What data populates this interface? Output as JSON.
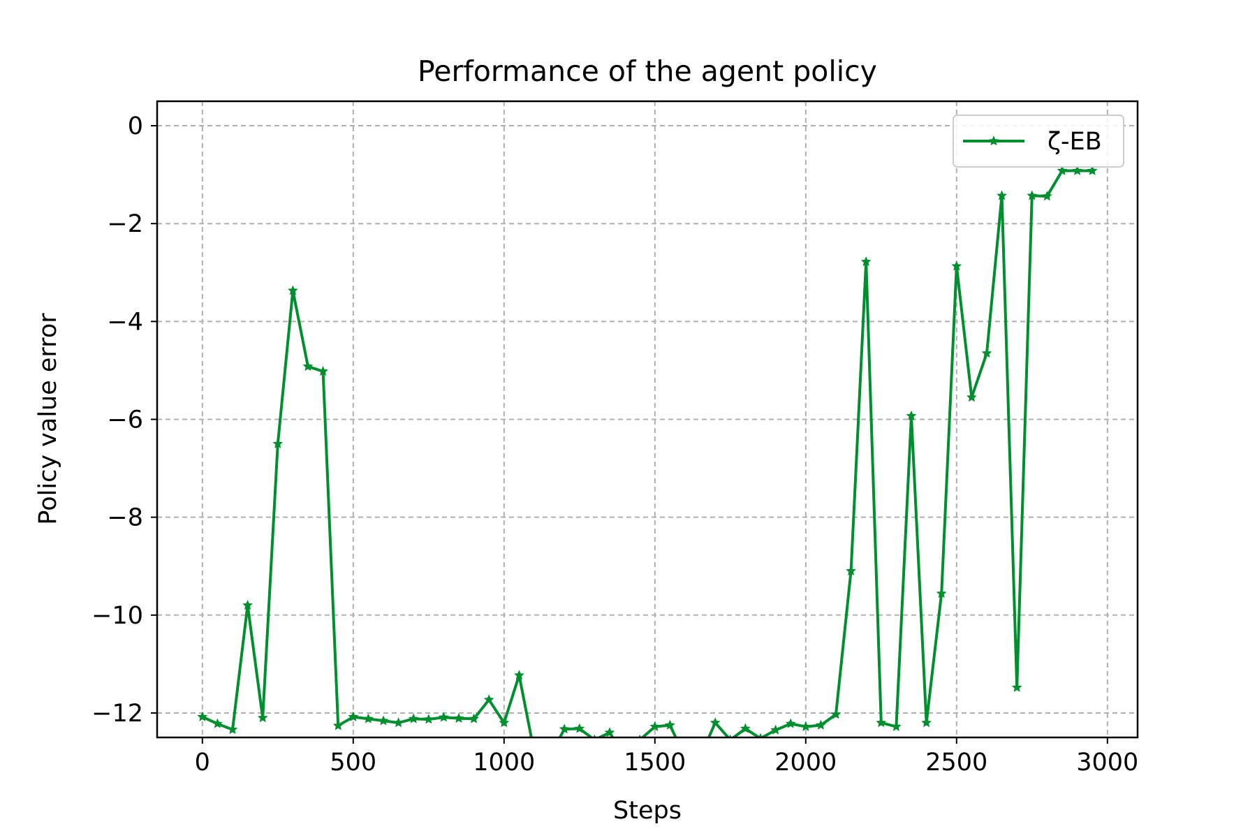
{
  "chart_data": {
    "type": "line",
    "title": "Performance of the agent policy",
    "xlabel": "Steps",
    "ylabel": "Policy value error",
    "xlim": [
      -150,
      3100
    ],
    "ylim": [
      -12.5,
      0.5
    ],
    "xticks": [
      0,
      500,
      1000,
      1500,
      2000,
      2500,
      3000
    ],
    "xtick_labels": [
      "0",
      "500",
      "1000",
      "1500",
      "2000",
      "2500",
      "3000"
    ],
    "yticks": [
      0,
      -2,
      -4,
      -6,
      -8,
      -10,
      -12
    ],
    "ytick_labels": [
      "0",
      "−2",
      "−4",
      "−6",
      "−8",
      "−10",
      "−12"
    ],
    "grid": true,
    "legend_position": "top-right",
    "series": [
      {
        "name": "ζ-EB",
        "color": "#008f2e",
        "marker": "star",
        "x": [
          0,
          50,
          100,
          150,
          200,
          250,
          300,
          350,
          400,
          450,
          500,
          550,
          600,
          650,
          700,
          750,
          800,
          850,
          900,
          950,
          1000,
          1050,
          1100,
          1150,
          1200,
          1250,
          1300,
          1350,
          1400,
          1450,
          1500,
          1550,
          1600,
          1650,
          1700,
          1750,
          1800,
          1850,
          1900,
          1950,
          2000,
          2050,
          2100,
          2150,
          2200,
          2250,
          2300,
          2350,
          2400,
          2450,
          2500,
          2550,
          2600,
          2650,
          2700,
          2750,
          2800,
          2850,
          2900,
          2950
        ],
        "y": [
          -12.08,
          -12.22,
          -12.34,
          -9.8,
          -12.1,
          -6.5,
          -3.37,
          -4.92,
          -5.02,
          -12.26,
          -12.08,
          -12.12,
          -12.16,
          -12.2,
          -12.12,
          -12.13,
          -12.09,
          -12.11,
          -12.12,
          -11.73,
          -12.2,
          -11.23,
          -12.8,
          -12.9,
          -12.33,
          -12.32,
          -12.55,
          -12.4,
          -12.9,
          -12.55,
          -12.28,
          -12.25,
          -12.9,
          -12.9,
          -12.2,
          -12.55,
          -12.32,
          -12.52,
          -12.35,
          -12.22,
          -12.28,
          -12.25,
          -12.03,
          -9.1,
          -2.78,
          -12.2,
          -12.28,
          -5.93,
          -12.2,
          -9.56,
          -2.87,
          -5.55,
          -4.65,
          -1.43,
          -11.48,
          -1.43,
          -1.44,
          -0.92,
          -0.92,
          -0.92
        ]
      }
    ]
  }
}
